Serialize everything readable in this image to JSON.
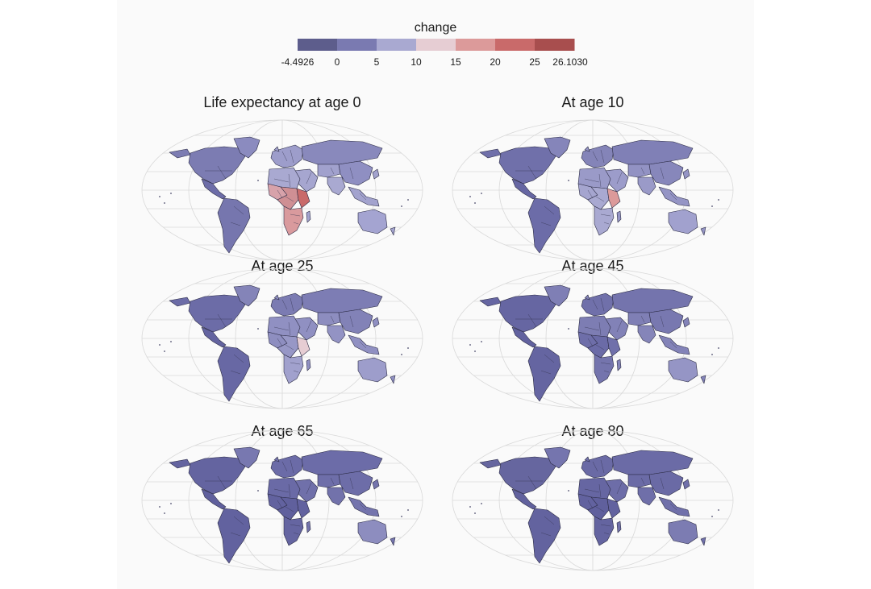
{
  "legend": {
    "title": "change",
    "ticks": [
      "-4.4926",
      "0",
      "5",
      "10",
      "15",
      "20",
      "25",
      "26.1030"
    ],
    "bins": [
      {
        "from": -4.4926,
        "to": 0,
        "color": "#5d5d8c"
      },
      {
        "from": 0,
        "to": 5,
        "color": "#7a7ab1"
      },
      {
        "from": 5,
        "to": 10,
        "color": "#a9a9d1"
      },
      {
        "from": 10,
        "to": 15,
        "color": "#e6cdd3"
      },
      {
        "from": 15,
        "to": 20,
        "color": "#dc9a9a"
      },
      {
        "from": 20,
        "to": 25,
        "color": "#c96a6a"
      },
      {
        "from": 25,
        "to": 26.103,
        "color": "#a84e4e"
      }
    ]
  },
  "panels": [
    {
      "title": "Life expectancy at age 0",
      "colors": {
        "north_america": "#7c7cb2",
        "greenland": "#8b8bbf",
        "central_america": "#6d6da8",
        "south_america": "#7676ae",
        "europe": "#9d9dcb",
        "russia": "#8989bc",
        "middle_east": "#a6a6d0",
        "central_asia": "#a1a1cd",
        "south_asia": "#a9a9d1",
        "east_asia": "#8f8fc2",
        "southeast_asia": "#a3a3ce",
        "north_africa": "#a9a9d1",
        "west_africa": "#d7a2aa",
        "central_africa": "#cf8f94",
        "east_africa": "#c96a6a",
        "southern_africa": "#d99a9d",
        "australia": "#a4a4d1"
      }
    },
    {
      "title": "At age 10",
      "colors": {
        "north_america": "#7070aa",
        "greenland": "#8585ba",
        "central_america": "#6767a3",
        "south_america": "#6c6ca8",
        "europe": "#8484b8",
        "russia": "#8080b6",
        "middle_east": "#9c9cca",
        "central_asia": "#9292c3",
        "south_asia": "#9a9ac8",
        "east_asia": "#8787bb",
        "southeast_asia": "#9595c5",
        "north_africa": "#9a9ac8",
        "west_africa": "#a5a5cf",
        "central_africa": "#a9a9d1",
        "east_africa": "#dc9a9a",
        "southern_africa": "#a9a9d1",
        "australia": "#a1a1ce"
      }
    },
    {
      "title": "At age 25",
      "colors": {
        "north_america": "#6c6ca7",
        "greenland": "#8484b8",
        "central_america": "#6464a0",
        "south_america": "#6868a4",
        "europe": "#7b7bb2",
        "russia": "#7d7db4",
        "middle_east": "#9090c2",
        "central_asia": "#8d8dbf",
        "south_asia": "#9393c4",
        "east_asia": "#8282b7",
        "southeast_asia": "#9090c2",
        "north_africa": "#9090c2",
        "west_africa": "#8e8ec0",
        "central_africa": "#9797c6",
        "east_africa": "#e6cdd3",
        "southern_africa": "#a1a1cd",
        "australia": "#9d9dcb"
      }
    },
    {
      "title": "At age 45",
      "colors": {
        "north_america": "#6666a2",
        "greenland": "#7f7fb5",
        "central_america": "#62629f",
        "south_america": "#6565a1",
        "europe": "#7070aa",
        "russia": "#7474ad",
        "middle_east": "#8282b7",
        "central_asia": "#7f7fb5",
        "south_asia": "#8585b9",
        "east_asia": "#7878b0",
        "southeast_asia": "#8383b8",
        "north_africa": "#7d7db3",
        "west_africa": "#6e6ea9",
        "central_africa": "#6b6ba7",
        "east_africa": "#7070aa",
        "southern_africa": "#7474ad",
        "australia": "#9595c5"
      }
    },
    {
      "title": "At age 65",
      "colors": {
        "north_america": "#6464a0",
        "greenland": "#7878b0",
        "central_america": "#60609d",
        "south_america": "#62629f",
        "europe": "#6b6ba7",
        "russia": "#6c6ca8",
        "middle_east": "#7070aa",
        "central_asia": "#6e6ea9",
        "south_asia": "#7272ab",
        "east_asia": "#6d6da8",
        "southeast_asia": "#7474ad",
        "north_africa": "#6a6aa6",
        "west_africa": "#62629f",
        "central_africa": "#60609d",
        "east_africa": "#62629f",
        "southern_africa": "#6565a1",
        "australia": "#8d8dbf"
      }
    },
    {
      "title": "At age 80",
      "colors": {
        "north_america": "#66669f",
        "greenland": "#7575ae",
        "central_america": "#62629e",
        "south_america": "#63639f",
        "europe": "#6a6aa5",
        "russia": "#6b6ba6",
        "middle_east": "#6d6da8",
        "central_asia": "#6b6ba6",
        "south_asia": "#6f6fa9",
        "east_asia": "#6a6aa5",
        "southeast_asia": "#7070aa",
        "north_africa": "#6666a2",
        "west_africa": "#62629f",
        "central_africa": "#60609d",
        "east_africa": "#62629f",
        "southern_africa": "#6464a0",
        "australia": "#7c7cb2"
      }
    }
  ]
}
